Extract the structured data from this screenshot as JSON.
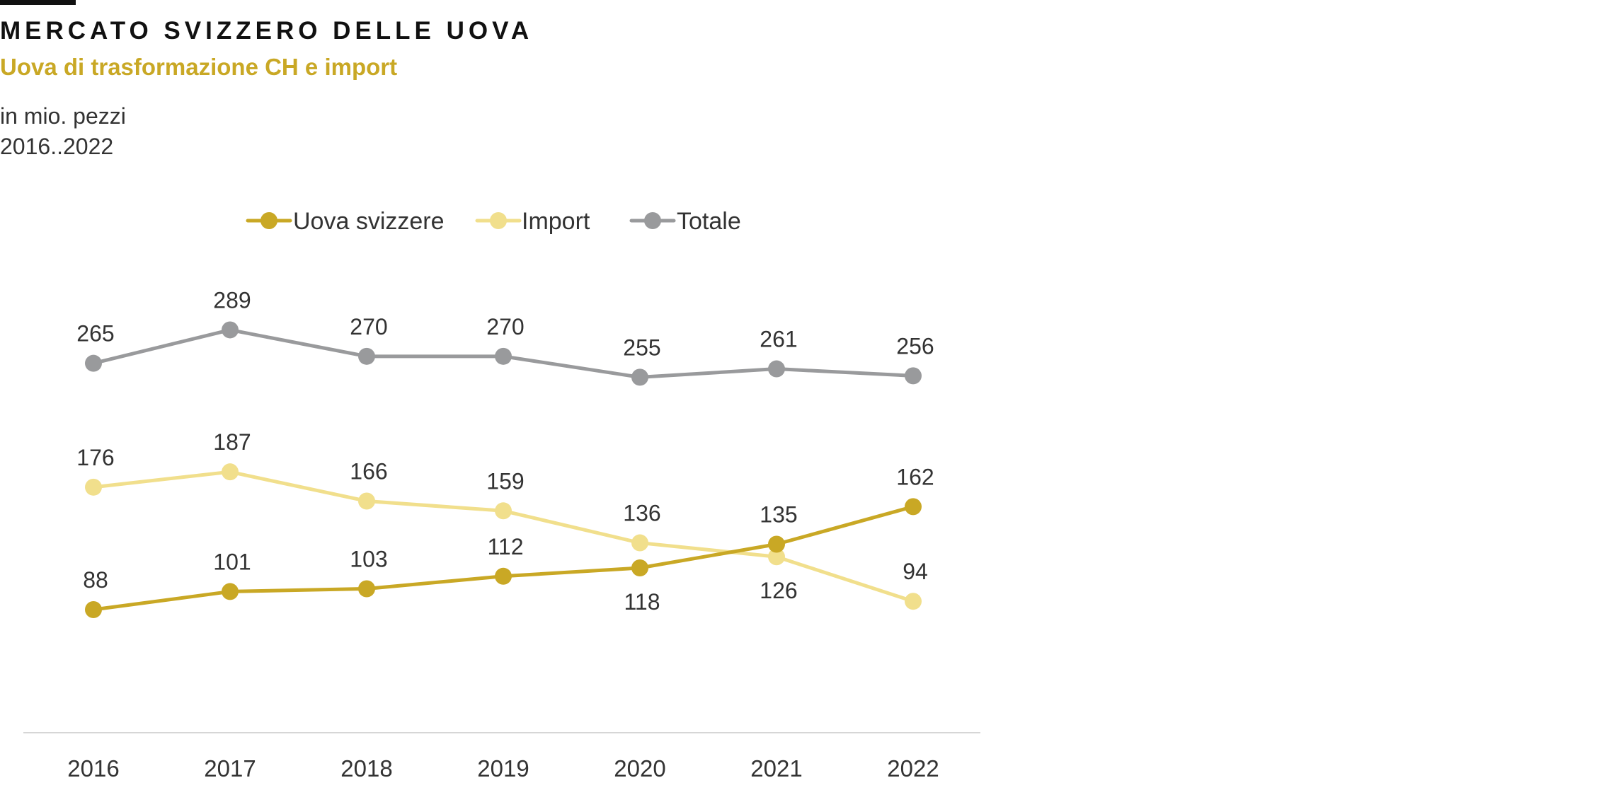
{
  "header": {
    "title": "MERCATO SVIZZERO DELLE UOVA",
    "subtitle": "Uova di trasformazione CH e import",
    "unit": "in mio. pezzi",
    "period": "2016..2022"
  },
  "colors": {
    "uova_svizzere": "#c9a825",
    "import": "#f1df8c",
    "totale": "#999a9c",
    "axis": "#d6d6d6",
    "text": "#333333"
  },
  "chart_data": {
    "type": "line",
    "title": "MERCATO SVIZZERO DELLE UOVA",
    "subtitle": "Uova di trasformazione CH e import",
    "ylabel": "in mio. pezzi",
    "xlabel": "",
    "categories": [
      "2016",
      "2017",
      "2018",
      "2019",
      "2020",
      "2021",
      "2022"
    ],
    "ylim": [
      0,
      320
    ],
    "grid": false,
    "legend": "top",
    "series": [
      {
        "name": "Uova svizzere",
        "color": "#c9a825",
        "values": [
          88,
          101,
          103,
          112,
          118,
          135,
          162
        ],
        "labels": [
          "88",
          "101",
          "103",
          "112",
          "118",
          "135",
          "162"
        ],
        "label_pos": [
          "above",
          "above",
          "above",
          "above",
          "below",
          "above",
          "above"
        ]
      },
      {
        "name": "Import",
        "color": "#f1df8c",
        "values": [
          176,
          187,
          166,
          159,
          136,
          126,
          94
        ],
        "labels": [
          "176",
          "187",
          "166",
          "159",
          "136",
          "126",
          "94"
        ],
        "label_pos": [
          "above",
          "above",
          "above",
          "above",
          "above",
          "below",
          "above"
        ]
      },
      {
        "name": "Totale",
        "color": "#999a9c",
        "values": [
          265,
          289,
          270,
          270,
          255,
          261,
          256
        ],
        "labels": [
          "265",
          "289",
          "270",
          "270",
          "255",
          "261",
          "256"
        ],
        "label_pos": [
          "above",
          "above",
          "above",
          "above",
          "above",
          "above",
          "above"
        ]
      }
    ]
  }
}
